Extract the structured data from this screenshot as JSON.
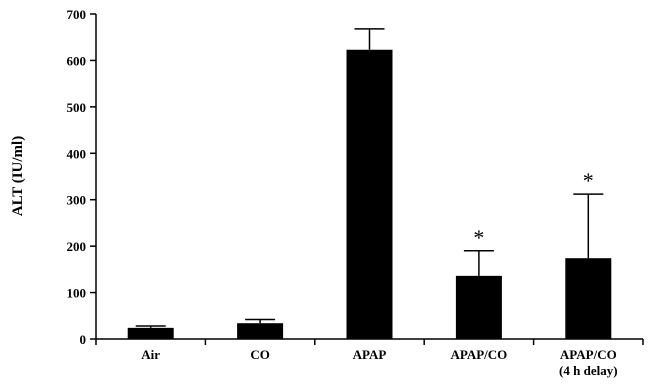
{
  "chart_data": {
    "type": "bar",
    "categories": [
      [
        "Air"
      ],
      [
        "CO"
      ],
      [
        "APAP"
      ],
      [
        "APAP/CO"
      ],
      [
        "APAP/CO",
        "(4 h  delay)"
      ]
    ],
    "values": [
      24,
      34,
      623,
      136,
      174
    ],
    "error_upper": [
      28,
      42,
      668,
      190,
      312
    ],
    "significance": [
      "",
      "",
      "",
      "*",
      "*"
    ],
    "ylabel": "ALT (IU/ml)",
    "xlabel": "",
    "ylim": [
      0,
      700
    ],
    "yticks": [
      0,
      100,
      200,
      300,
      400,
      500,
      600,
      700
    ],
    "grid": false,
    "bar_color": "#000000"
  }
}
